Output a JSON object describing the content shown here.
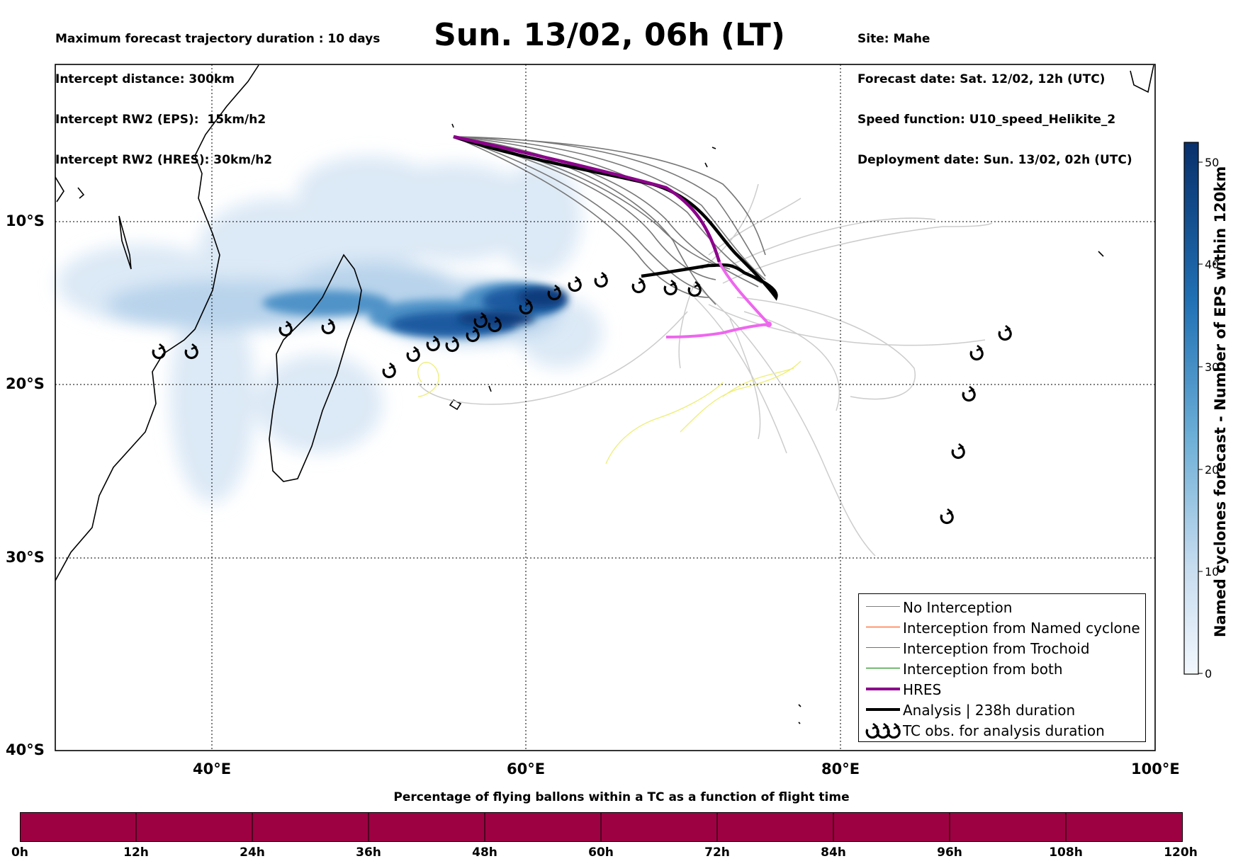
{
  "header_left": [
    "Maximum forecast trajectory duration : 10 days",
    "Intercept distance: 300km",
    "Intercept RW2 (EPS):  15km/h2",
    "Intercept RW2 (HRES): 30km/h2"
  ],
  "header_right": [
    "Site: Mahe",
    "Forecast date: Sat. 12/02, 12h (UTC)",
    "Speed function: U10_speed_Helikite_2",
    "Deployment date: Sun. 13/02, 02h (UTC)"
  ],
  "title": "Sun. 13/02, 06h (LT)",
  "map": {
    "lat_labels": [
      "10°S",
      "20°S",
      "30°S",
      "40°S"
    ],
    "lon_labels": [
      "40°E",
      "60°E",
      "80°E",
      "100°E"
    ],
    "lon_range": [
      30,
      100
    ],
    "lat_range": [
      0,
      -40
    ]
  },
  "colorbar": {
    "title": "Named cyclones forecast - Number of EPS within 120km",
    "ticks": [
      "0",
      "10",
      "20",
      "30",
      "40",
      "50"
    ],
    "color_low": "#e3eef9",
    "color_high": "#08306b"
  },
  "legend": [
    {
      "label": "No Interception",
      "color": "#808080"
    },
    {
      "label": "Interception from Named cyclone",
      "color": "#ff4500"
    },
    {
      "label": "Interception from Trochoid",
      "color": "#808000"
    },
    {
      "label": "Interception from both",
      "color": "#008000"
    },
    {
      "label": "HRES",
      "color": "#8b008b"
    },
    {
      "label": "Analysis | 238h duration",
      "color": "#000000"
    },
    {
      "label": "TC obs. for analysis duration",
      "icon": "cyclone-symbol"
    }
  ],
  "flight_time": {
    "title": "Percentage of flying ballons within a TC as a function of flight time",
    "ticks": [
      "0h",
      "12h",
      "24h",
      "36h",
      "48h",
      "60h",
      "72h",
      "84h",
      "96h",
      "108h",
      "120h"
    ],
    "bar_color": "#9e0142"
  },
  "colors": {
    "hres": "#8b008b",
    "hres_light": "#ee66ee",
    "analysis": "#000000",
    "eps_dark": "#606060",
    "eps_light": "#cccccc",
    "trochoid_track": "#eeee77"
  }
}
